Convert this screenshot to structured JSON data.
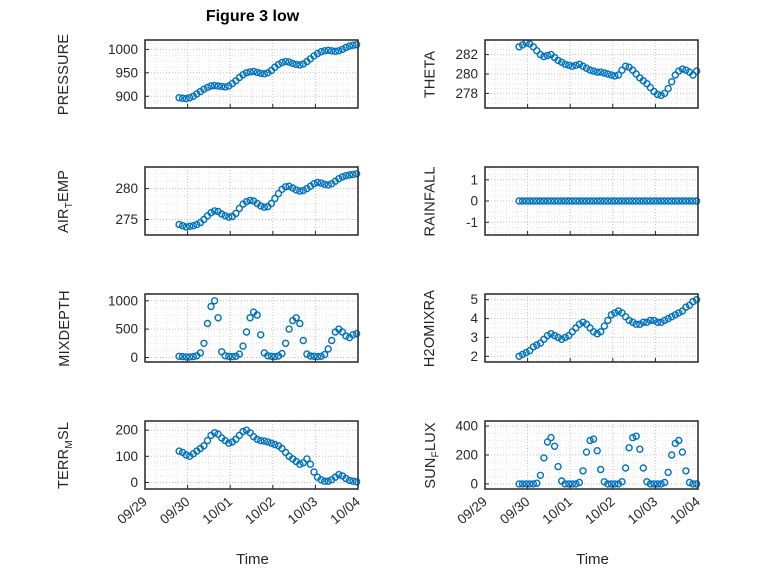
{
  "chart_data": {
    "type": "scatter",
    "title": "Figure 3 low",
    "xlabel": "Time",
    "layout": "4x2-grid",
    "grid": "on-dotted",
    "marker": {
      "shape": "open-circle",
      "color": "#0072BD"
    },
    "xlim": [
      0,
      5
    ],
    "x_tick_positions": [
      0,
      1,
      2,
      3,
      4,
      5
    ],
    "x_tick_labels": [
      "09/29",
      "09/30",
      "10/01",
      "10/02",
      "10/03",
      "10/04"
    ],
    "x_unit": "days-from-09/29",
    "x_days": [
      0.8,
      0.883,
      0.967,
      1.05,
      1.133,
      1.217,
      1.3,
      1.383,
      1.467,
      1.55,
      1.633,
      1.717,
      1.8,
      1.883,
      1.967,
      2.05,
      2.133,
      2.217,
      2.3,
      2.383,
      2.467,
      2.55,
      2.633,
      2.717,
      2.8,
      2.883,
      2.967,
      3.05,
      3.133,
      3.217,
      3.3,
      3.383,
      3.467,
      3.55,
      3.633,
      3.717,
      3.8,
      3.883,
      3.967,
      4.05,
      4.133,
      4.217,
      4.3,
      4.383,
      4.467,
      4.55,
      4.633,
      4.717,
      4.8,
      4.883,
      4.967
    ],
    "subplots": [
      {
        "id": "pressure",
        "ylabel": {
          "pre": "PRESSURE",
          "sub": "",
          "post": ""
        },
        "ylim": [
          875,
          1020
        ],
        "yticks": [
          900,
          950,
          1000
        ],
        "values": [
          897,
          896,
          895,
          897,
          900,
          905,
          910,
          915,
          919,
          922,
          923,
          922,
          921,
          920,
          922,
          927,
          933,
          940,
          946,
          950,
          952,
          953,
          951,
          949,
          948,
          950,
          955,
          962,
          968,
          972,
          974,
          973,
          970,
          968,
          967,
          969,
          974,
          980,
          986,
          991,
          995,
          997,
          998,
          997,
          996,
          997,
          1000,
          1004,
          1007,
          1009,
          1010
        ]
      },
      {
        "id": "theta",
        "ylabel": {
          "pre": "THETA",
          "sub": "",
          "post": ""
        },
        "ylim": [
          276.5,
          283.5
        ],
        "yticks": [
          278,
          280,
          282
        ],
        "values": [
          282.8,
          283.0,
          283.2,
          283.1,
          282.8,
          282.4,
          282.0,
          281.8,
          281.9,
          282.0,
          281.7,
          281.4,
          281.2,
          281.0,
          280.9,
          280.8,
          280.9,
          281.0,
          280.8,
          280.6,
          280.4,
          280.3,
          280.2,
          280.2,
          280.1,
          280.0,
          279.9,
          279.8,
          279.9,
          280.4,
          280.8,
          280.7,
          280.4,
          280.0,
          279.6,
          279.3,
          279.0,
          278.6,
          278.2,
          277.9,
          277.8,
          278.0,
          278.5,
          279.2,
          279.9,
          280.3,
          280.5,
          280.4,
          280.2,
          279.9,
          280.3
        ]
      },
      {
        "id": "air-temp",
        "ylabel": {
          "pre": "AIR",
          "sub": "T",
          "post": "EMP"
        },
        "ylim": [
          272.5,
          283.5
        ],
        "yticks": [
          275,
          280
        ],
        "values": [
          274.2,
          274.0,
          273.8,
          273.9,
          274.0,
          274.2,
          274.5,
          275.0,
          275.6,
          276.1,
          276.4,
          276.3,
          275.9,
          275.6,
          275.4,
          275.5,
          276.0,
          276.8,
          277.5,
          277.9,
          278.1,
          278.0,
          277.6,
          277.2,
          277.0,
          277.1,
          277.6,
          278.4,
          279.2,
          279.9,
          280.3,
          280.4,
          280.1,
          279.8,
          279.6,
          279.7,
          280.0,
          280.4,
          280.8,
          281.0,
          280.9,
          280.7,
          280.6,
          280.8,
          281.2,
          281.6,
          281.9,
          282.1,
          282.2,
          282.3,
          282.4
        ]
      },
      {
        "id": "rainfall",
        "ylabel": {
          "pre": "RAINFALL",
          "sub": "",
          "post": ""
        },
        "ylim": [
          -1.6,
          1.6
        ],
        "yticks": [
          -1,
          0,
          1
        ],
        "values": [
          0,
          0,
          0,
          0,
          0,
          0,
          0,
          0,
          0,
          0,
          0,
          0,
          0,
          0,
          0,
          0,
          0,
          0,
          0,
          0,
          0,
          0,
          0,
          0,
          0,
          0,
          0,
          0,
          0,
          0,
          0,
          0,
          0,
          0,
          0,
          0,
          0,
          0,
          0,
          0,
          0,
          0,
          0,
          0,
          0,
          0,
          0,
          0,
          0,
          0,
          0
        ]
      },
      {
        "id": "mixdepth",
        "ylabel": {
          "pre": "MIXDEPTH",
          "sub": "",
          "post": ""
        },
        "ylim": [
          -80,
          1120
        ],
        "yticks": [
          0,
          500,
          1000
        ],
        "values": [
          20,
          15,
          10,
          10,
          15,
          30,
          80,
          250,
          600,
          900,
          1000,
          700,
          100,
          30,
          20,
          15,
          20,
          60,
          200,
          450,
          700,
          800,
          750,
          400,
          80,
          30,
          20,
          15,
          25,
          70,
          250,
          500,
          650,
          700,
          600,
          300,
          60,
          25,
          20,
          15,
          20,
          50,
          150,
          300,
          450,
          500,
          450,
          380,
          350,
          400,
          420
        ]
      },
      {
        "id": "h2omixra",
        "ylabel": {
          "pre": "H2OMIXRA",
          "sub": "",
          "post": ""
        },
        "ylim": [
          1.7,
          5.3
        ],
        "yticks": [
          2,
          3,
          4,
          5
        ],
        "values": [
          2.0,
          2.1,
          2.2,
          2.3,
          2.5,
          2.6,
          2.7,
          2.9,
          3.1,
          3.2,
          3.1,
          3.0,
          2.9,
          3.0,
          3.1,
          3.3,
          3.5,
          3.7,
          3.8,
          3.7,
          3.5,
          3.3,
          3.2,
          3.3,
          3.6,
          3.9,
          4.2,
          4.3,
          4.4,
          4.3,
          4.1,
          3.9,
          3.8,
          3.7,
          3.7,
          3.8,
          3.8,
          3.9,
          3.9,
          3.8,
          3.8,
          3.9,
          4.0,
          4.1,
          4.2,
          4.3,
          4.4,
          4.6,
          4.7,
          4.9,
          5.0
        ]
      },
      {
        "id": "terr-msl",
        "ylabel": {
          "pre": "TERR",
          "sub": "M",
          "post": "SL"
        },
        "ylim": [
          -25,
          235
        ],
        "yticks": [
          0,
          100,
          200
        ],
        "values": [
          120,
          115,
          105,
          100,
          110,
          120,
          130,
          140,
          160,
          180,
          190,
          185,
          170,
          160,
          150,
          155,
          165,
          180,
          195,
          200,
          190,
          175,
          165,
          160,
          158,
          155,
          150,
          145,
          140,
          130,
          115,
          100,
          90,
          80,
          70,
          75,
          90,
          70,
          40,
          20,
          10,
          5,
          5,
          10,
          20,
          30,
          25,
          15,
          8,
          5,
          3
        ]
      },
      {
        "id": "sun-flux",
        "ylabel": {
          "pre": "SUN",
          "sub": "F",
          "post": "LUX"
        },
        "ylim": [
          -35,
          435
        ],
        "yticks": [
          0,
          200,
          400
        ],
        "values": [
          0,
          0,
          0,
          0,
          0,
          5,
          60,
          180,
          290,
          320,
          260,
          120,
          20,
          0,
          0,
          0,
          0,
          10,
          90,
          220,
          300,
          310,
          230,
          100,
          15,
          0,
          0,
          0,
          0,
          15,
          110,
          250,
          320,
          330,
          240,
          110,
          15,
          0,
          0,
          0,
          0,
          10,
          80,
          200,
          280,
          300,
          220,
          90,
          10,
          0,
          0
        ]
      }
    ]
  }
}
